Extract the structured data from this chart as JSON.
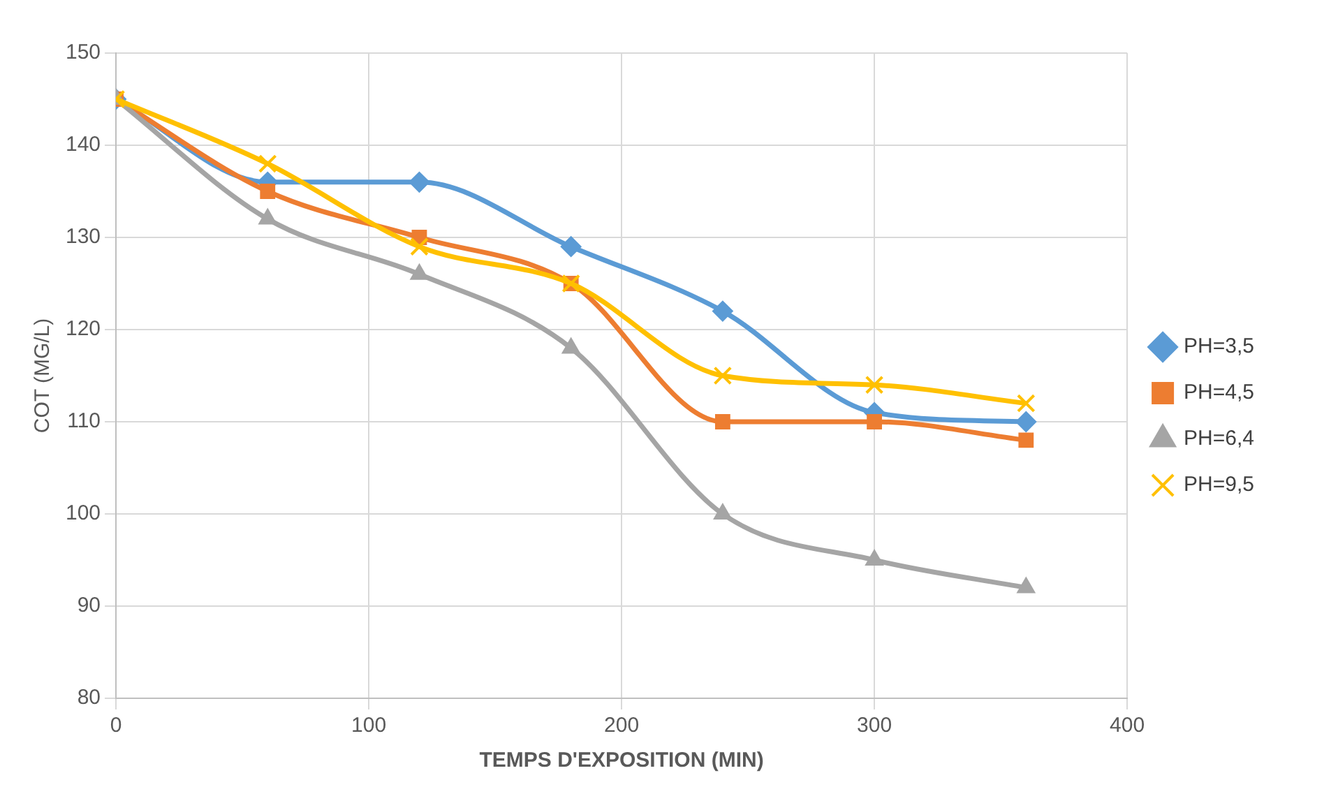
{
  "chart_data": {
    "type": "line",
    "xlabel": "TEMPS D'EXPOSITION (MIN)",
    "ylabel": "COT (MG/L)",
    "x": [
      0,
      60,
      120,
      180,
      240,
      300,
      360
    ],
    "xlim": [
      0,
      400
    ],
    "xticks": [
      0,
      100,
      200,
      300,
      400
    ],
    "ylim": [
      80,
      150
    ],
    "yticks": [
      80,
      90,
      100,
      110,
      120,
      130,
      140,
      150
    ],
    "grid": true,
    "legend": "right",
    "series": [
      {
        "name": "PH=3,5",
        "color": "#5b9bd5",
        "marker": "diamond",
        "values": [
          145,
          136,
          136,
          129,
          122,
          111,
          110
        ]
      },
      {
        "name": "PH=4,5",
        "color": "#ed7d31",
        "marker": "square",
        "values": [
          145,
          135,
          130,
          125,
          110,
          110,
          108
        ]
      },
      {
        "name": "PH=6,4",
        "color": "#a5a5a5",
        "marker": "triangle",
        "values": [
          145,
          132,
          126,
          118,
          100,
          95,
          92
        ]
      },
      {
        "name": "PH=9,5",
        "color": "#ffc000",
        "marker": "cross",
        "values": [
          145,
          138,
          129,
          125,
          115,
          114,
          112
        ]
      }
    ]
  }
}
